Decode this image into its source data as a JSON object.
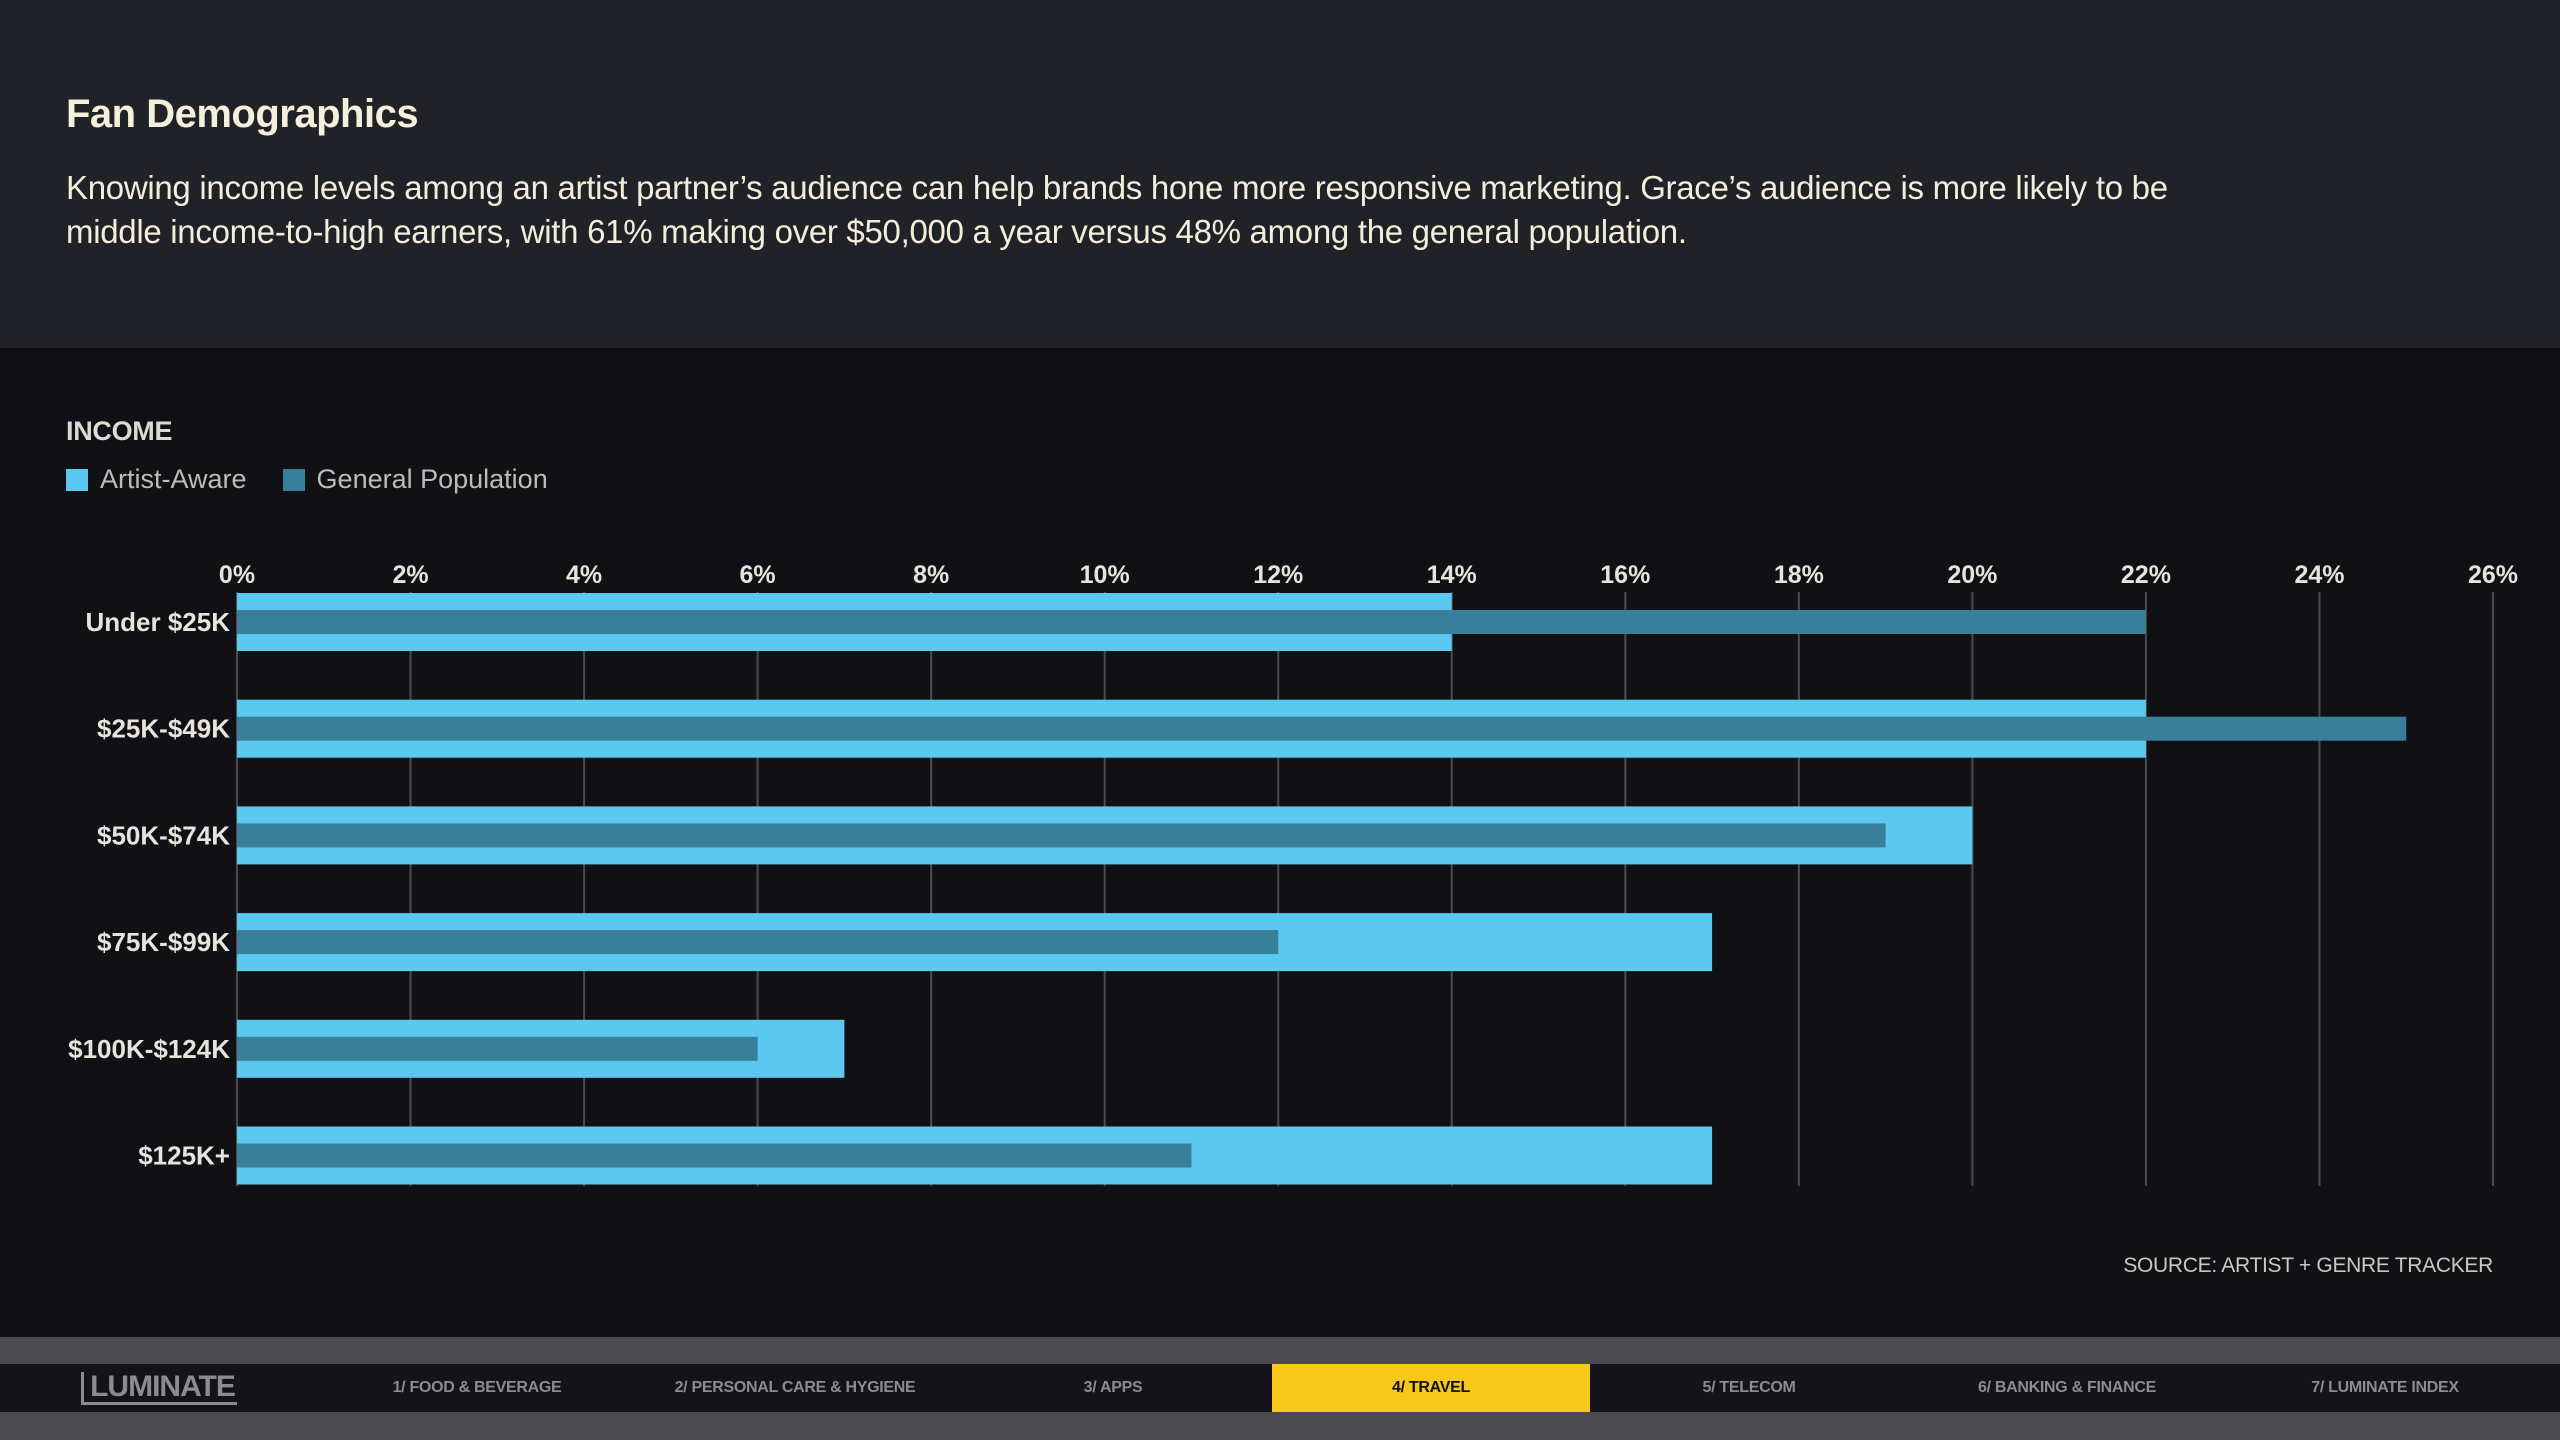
{
  "header": {
    "title": "Fan Demographics",
    "description": "Knowing income levels among an artist partner’s audience can help brands hone more responsive marketing. Grace’s audience is more likely to be middle income-to-high earners, with 61% making over $50,000 a year versus 48% among the general population."
  },
  "section_label": "INCOME",
  "legend": {
    "artist_aware": "Artist-Aware",
    "general_population": "General Population"
  },
  "source": "SOURCE: ARTIST + GENRE TRACKER",
  "colors": {
    "artist_aware": "#5bc8ef",
    "general_population": "#3a7f9a",
    "accent": "#f7c719"
  },
  "chart_data": {
    "type": "bar",
    "orientation": "horizontal",
    "title": "INCOME",
    "categories": [
      "Under $25K",
      "$25K-$49K",
      "$50K-$74K",
      "$75K-$99K",
      "$100K-$124K",
      "$125K+"
    ],
    "series": [
      {
        "name": "Artist-Aware",
        "values": [
          14,
          22,
          20,
          17,
          7,
          17
        ]
      },
      {
        "name": "General Population",
        "values": [
          22,
          25,
          19,
          12,
          6,
          11
        ]
      }
    ],
    "xlim": [
      0,
      26
    ],
    "xticks": [
      "0%",
      "2%",
      "4%",
      "6%",
      "8%",
      "10%",
      "12%",
      "14%",
      "16%",
      "18%",
      "20%",
      "22%",
      "24%",
      "26%"
    ],
    "tick_step": 2,
    "grid": true,
    "legend_position": "top-left"
  },
  "nav": {
    "logo": "LUMINATE",
    "items": [
      {
        "label": "1/ FOOD & BEVERAGE",
        "active": false
      },
      {
        "label": "2/ PERSONAL CARE & HYGIENE",
        "active": false
      },
      {
        "label": "3/ APPS",
        "active": false
      },
      {
        "label": "4/ TRAVEL",
        "active": true
      },
      {
        "label": "5/ TELECOM",
        "active": false
      },
      {
        "label": "6/ BANKING & FINANCE",
        "active": false
      },
      {
        "label": "7/ LUMINATE INDEX",
        "active": false
      }
    ]
  }
}
